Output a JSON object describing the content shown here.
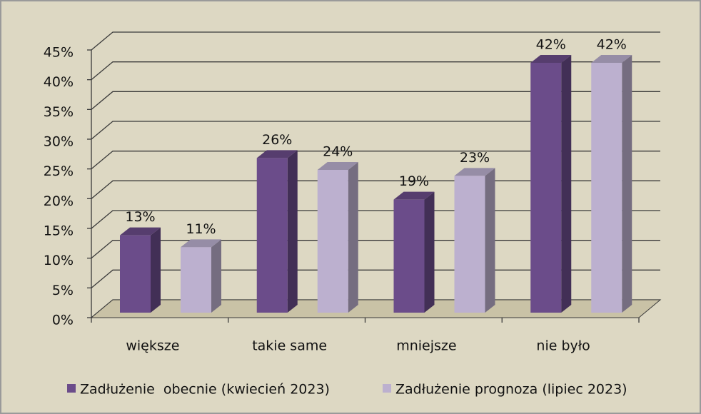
{
  "chart_data": {
    "type": "bar3d",
    "categories": [
      "większe",
      "takie same",
      "mniejsze",
      "nie było"
    ],
    "series": [
      {
        "name": "Zadłużenie  obecnie (kwiecień 2023)",
        "color": "#6b4c8a",
        "values": [
          13,
          26,
          19,
          42
        ],
        "value_labels": [
          "13%",
          "26%",
          "19%",
          "42%"
        ]
      },
      {
        "name": "Zadłużenie prognoza (lipiec 2023)",
        "color": "#bcb0cf",
        "values": [
          11,
          24,
          23,
          42
        ],
        "value_labels": [
          "11%",
          "24%",
          "23%",
          "42%"
        ]
      }
    ],
    "ylim": [
      0,
      45
    ],
    "yticks": [
      {
        "value": 0,
        "label": "0%"
      },
      {
        "value": 5,
        "label": "5%"
      },
      {
        "value": 10,
        "label": "10%"
      },
      {
        "value": 15,
        "label": "15%"
      },
      {
        "value": 20,
        "label": "20%"
      },
      {
        "value": 25,
        "label": "25%"
      },
      {
        "value": 30,
        "label": "30%"
      },
      {
        "value": 35,
        "label": "35%"
      },
      {
        "value": 40,
        "label": "40%"
      },
      {
        "value": 45,
        "label": "45%"
      }
    ],
    "grid": true,
    "legend": "bottom"
  }
}
